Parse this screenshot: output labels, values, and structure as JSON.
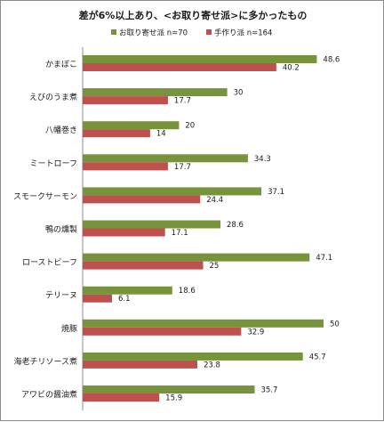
{
  "chart_data": {
    "type": "bar",
    "orientation": "horizontal",
    "title": "差が6%以上あり、<お取り寄せ派>に多かったもの",
    "categories": [
      "かまぼこ",
      "えびのうま煮",
      "八幡巻き",
      "ミートローフ",
      "スモークサーモン",
      "鴨の燻製",
      "ローストビーフ",
      "テリーヌ",
      "焼豚",
      "海老チリソース煮",
      "アワビの醤油煮"
    ],
    "series": [
      {
        "name": "お取り寄せ派 n=70",
        "color": "#77933c",
        "values": [
          48.6,
          30,
          20,
          34.3,
          37.1,
          28.6,
          47.1,
          18.6,
          50,
          45.7,
          35.7
        ]
      },
      {
        "name": "手作り派 n=164",
        "color": "#c0504d",
        "values": [
          40.2,
          17.7,
          14,
          17.7,
          24.4,
          17.1,
          25,
          6.1,
          32.9,
          23.8,
          15.9
        ]
      }
    ],
    "value_labels": [
      [
        "48.6",
        "30",
        "20",
        "34.3",
        "37.1",
        "28.6",
        "47.1",
        "18.6",
        "50",
        "45.7",
        "35.7"
      ],
      [
        "40.2",
        "17.7",
        "14",
        "17.7",
        "24.4",
        "17.1",
        "25",
        "6.1",
        "32.9",
        "23.8",
        "15.9"
      ]
    ],
    "xlim": [
      0,
      50
    ],
    "grid": false,
    "legend_position": "top"
  }
}
